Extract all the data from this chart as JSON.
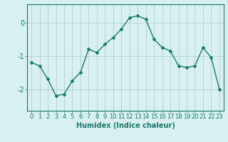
{
  "x": [
    0,
    1,
    2,
    3,
    4,
    5,
    6,
    7,
    8,
    9,
    10,
    11,
    12,
    13,
    14,
    15,
    16,
    17,
    18,
    19,
    20,
    21,
    22,
    23
  ],
  "y": [
    -1.2,
    -1.3,
    -1.7,
    -2.2,
    -2.15,
    -1.75,
    -1.5,
    -0.8,
    -0.9,
    -0.65,
    -0.45,
    -0.2,
    0.15,
    0.2,
    0.1,
    -0.5,
    -0.75,
    -0.85,
    -1.3,
    -1.35,
    -1.3,
    -0.75,
    -1.05,
    -2.0
  ],
  "line_color": "#1a7a6e",
  "marker": "D",
  "marker_size": 2,
  "line_width": 1.0,
  "bg_color": "#d8f0f0",
  "grid_color": "#b8d4d4",
  "xlabel": "Humidex (Indice chaleur)",
  "xlim": [
    -0.5,
    23.5
  ],
  "ylim": [
    -2.65,
    0.55
  ],
  "yticks": [
    0,
    -1,
    -2
  ],
  "xtick_labels": [
    "0",
    "1",
    "2",
    "3",
    "4",
    "5",
    "6",
    "7",
    "8",
    "9",
    "10",
    "11",
    "12",
    "13",
    "14",
    "15",
    "16",
    "17",
    "18",
    "19",
    "20",
    "21",
    "22",
    "23"
  ],
  "xlabel_fontsize": 7,
  "tick_fontsize": 6
}
